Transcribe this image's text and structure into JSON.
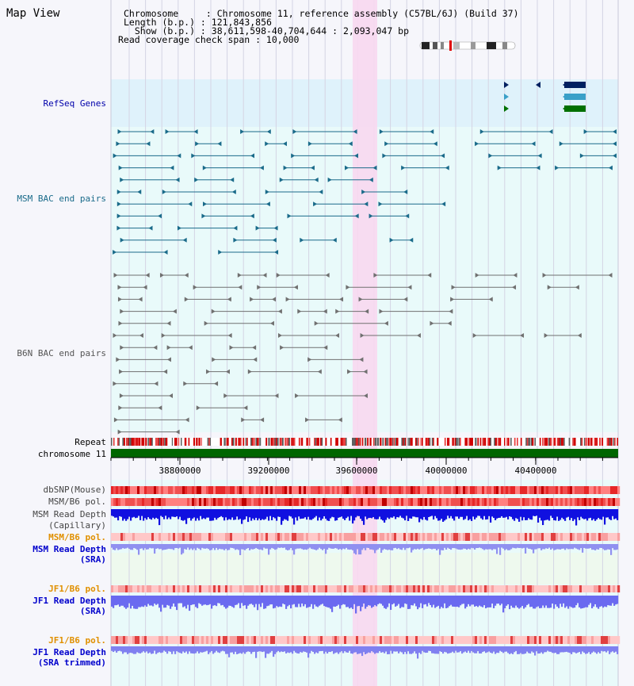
{
  "header": {
    "view_title": "Map View",
    "line1": "Chromosome     : Chromosome 11, reference assembly (C57BL/6J) (Build 37)",
    "line2": "Length (b.p.) : 121,843,856",
    "line3": "  Show (b.p.) : 38,611,598-40,704,644 : 2,093,047 bp",
    "line4": "Read coverage check span : 10,000"
  },
  "tracks": {
    "refseq": "RefSeq Genes",
    "msm_bac": "MSM BAC end pairs",
    "b6n_bac": "B6N BAC end pairs",
    "repeat": "Repeat",
    "chromosome": "chromosome 11",
    "dbsnp": "dbSNP(Mouse)",
    "msm_b6_pol_1": "MSM/B6 pol.",
    "msm_depth_cap_1": "MSM Read Depth",
    "msm_depth_cap_2": "(Capillary)",
    "msm_b6_pol_2": "MSM/B6 pol.",
    "msm_depth_sra_1": "MSM Read Depth",
    "msm_depth_sra_2": "(SRA)",
    "jf1_b6_pol_1": "JF1/B6 pol.",
    "jf1_depth_sra_1": "JF1 Read Depth",
    "jf1_depth_sra_2": "(SRA)",
    "jf1_b6_pol_2": "JF1/B6 pol.",
    "jf1_depth_trim_1": "JF1 Read Depth",
    "jf1_depth_trim_2": "(SRA trimmed)"
  },
  "axis": {
    "ticks": [
      "38800000",
      "39200000",
      "39600000",
      "40000000",
      "40400000"
    ]
  },
  "colors": {
    "refseq_label": "#0000aa",
    "msm_label": "#1a6b8a",
    "b6n_label": "#555555",
    "pol_label": "#e09000",
    "depth_label": "#0000cc",
    "chromosome": "#006600",
    "highlight": "#f8d8f0"
  }
}
